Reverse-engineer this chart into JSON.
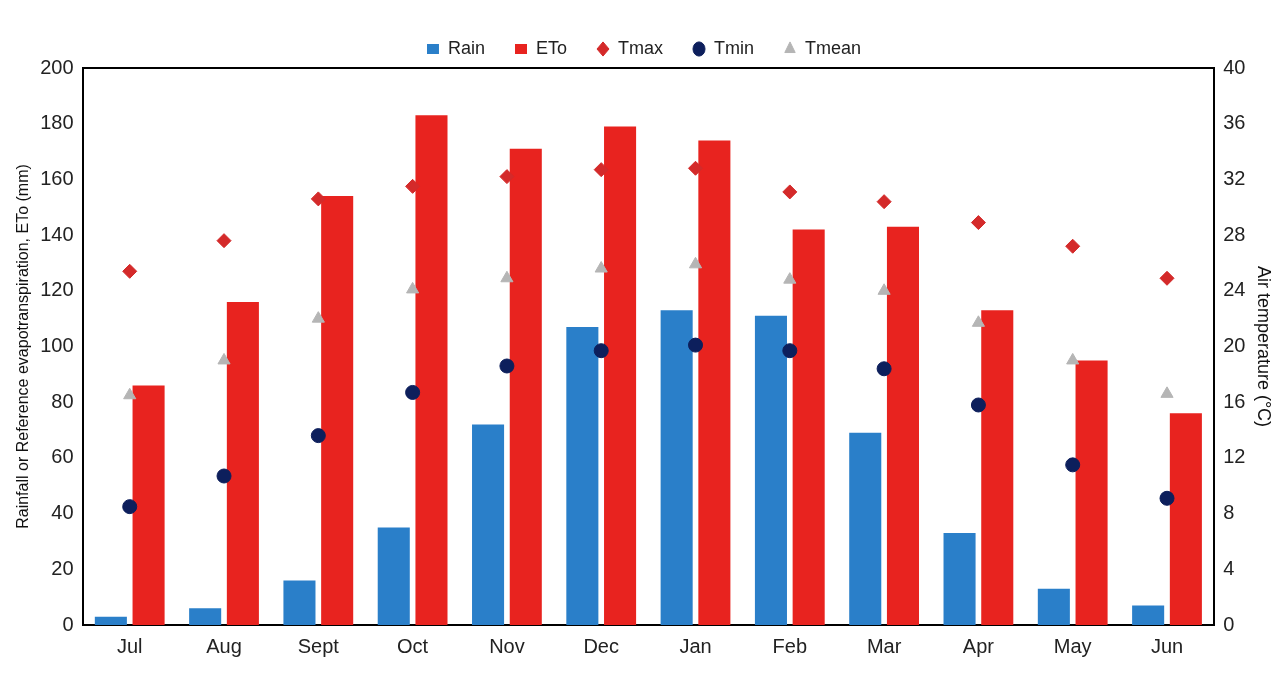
{
  "chart_data": {
    "type": "bar",
    "ylabel": "Rainfall or Reference evapotranspiration, ETo (mm)",
    "y2label": "Air temperature (°C)",
    "categories": [
      "Jul",
      "Aug",
      "Sept",
      "Oct",
      "Nov",
      "Dec",
      "Jan",
      "Feb",
      "Mar",
      "Apr",
      "May",
      "Jun"
    ],
    "series": [
      {
        "name": "Rain",
        "color": "#2a7fc9",
        "values": [
          3,
          6,
          16,
          35,
          72,
          107,
          113,
          111,
          69,
          33,
          13,
          7
        ]
      },
      {
        "name": "ETo",
        "color": "#e8231f",
        "values": [
          86,
          116,
          154,
          183,
          171,
          179,
          174,
          142,
          143,
          113,
          95,
          76
        ]
      },
      {
        "name": "Tmax",
        "type": "scatter",
        "axis": "y2",
        "marker": "diamond",
        "color": "#d42a2a",
        "x": [
          "Jul",
          "Aug",
          "Sept",
          "Oct",
          "Nov",
          "Dec",
          "Jan",
          "Feb",
          "Mar",
          "Apr",
          "May",
          "Jun"
        ],
        "values": [
          25.4,
          27.6,
          30.6,
          31.5,
          32.2,
          32.7,
          32.8,
          31.1,
          30.4,
          28.9,
          27.2,
          24.9
        ]
      },
      {
        "name": "Tmin",
        "type": "scatter",
        "axis": "y2",
        "marker": "circle",
        "color": "#0d1f5c",
        "x": [
          "Jul",
          "Aug",
          "Sept",
          "Oct",
          "Nov",
          "Dec",
          "Jan",
          "Feb",
          "Mar",
          "Apr",
          "May",
          "Jun"
        ],
        "values": [
          8.5,
          10.7,
          13.6,
          16.7,
          18.6,
          19.7,
          20.1,
          19.7,
          18.4,
          15.8,
          11.5,
          9.1
        ]
      },
      {
        "name": "Tmean",
        "type": "scatter",
        "axis": "y2",
        "marker": "triangle",
        "color": "#b5b5b5",
        "x": [
          "Jul",
          "Aug",
          "Sept",
          "Oct",
          "Nov",
          "Dec",
          "Jan",
          "Feb",
          "Mar",
          "Apr",
          "May",
          "Jun"
        ],
        "values": [
          16.5,
          19.0,
          22.0,
          24.1,
          24.9,
          25.6,
          25.9,
          24.8,
          24.0,
          21.7,
          19.0,
          16.6
        ]
      }
    ],
    "ylim": [
      0,
      200
    ],
    "yticks": [
      0,
      20,
      40,
      60,
      80,
      100,
      120,
      140,
      160,
      180,
      200
    ],
    "y2lim": [
      0,
      40
    ],
    "y2ticks": [
      0,
      4,
      8,
      12,
      16,
      20,
      24,
      28,
      32,
      36,
      40
    ],
    "grid": false,
    "legend": "top"
  }
}
